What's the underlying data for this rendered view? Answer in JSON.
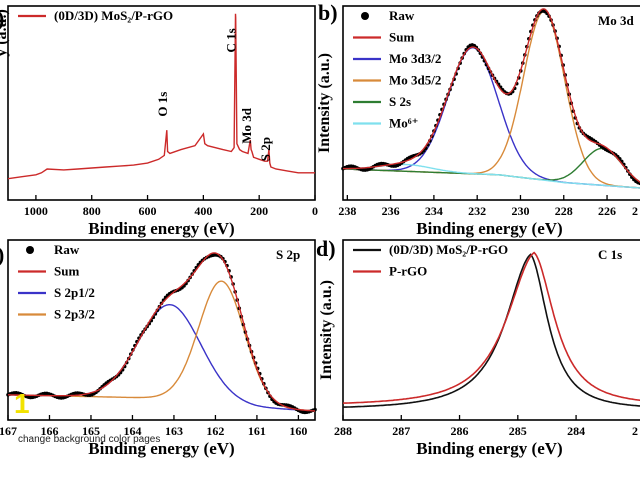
{
  "chart_data": [
    {
      "id": "a",
      "type": "line",
      "panel_letter": ")",
      "legend": [
        {
          "name": "(0D/3D) MoS₂/P-rGO",
          "color": "#cc2a2a",
          "marker": "line"
        }
      ],
      "xlabel": "Binding energy (eV)",
      "ylabel": "y (a.u.)",
      "xlim": [
        1100,
        0
      ],
      "ylim": [
        0,
        10
      ],
      "xticks": [
        1000,
        800,
        600,
        400,
        200,
        0
      ],
      "annotations": [
        {
          "text": "O 1s",
          "x": 531,
          "y": 4.3
        },
        {
          "text": "C 1s",
          "x": 284,
          "y": 7.6
        },
        {
          "text": "Mo 3d",
          "x": 229,
          "y": 2.9
        },
        {
          "text": "S 2p",
          "x": 162,
          "y": 2.0
        }
      ],
      "series": [
        {
          "name": "(0D/3D) MoS₂/P-rGO",
          "color": "#cc2a2a",
          "x": [
            1100,
            1050,
            1000,
            980,
            960,
            900,
            850,
            800,
            750,
            700,
            650,
            600,
            560,
            540,
            531,
            528,
            520,
            480,
            430,
            410,
            400,
            395,
            385,
            330,
            300,
            290,
            285,
            284,
            280,
            270,
            260,
            240,
            232,
            229,
            226,
            220,
            200,
            180,
            170,
            165,
            162,
            158,
            140,
            100,
            60,
            20,
            0
          ],
          "y": [
            1.1,
            1.2,
            1.3,
            1.4,
            1.6,
            1.55,
            1.6,
            1.65,
            1.7,
            1.75,
            1.8,
            1.9,
            2.1,
            2.3,
            3.6,
            2.5,
            2.4,
            2.6,
            2.8,
            3.2,
            3.4,
            2.9,
            2.8,
            2.6,
            2.5,
            2.7,
            9.6,
            9.4,
            2.9,
            2.6,
            2.5,
            2.4,
            3.1,
            2.6,
            2.5,
            2.2,
            2.1,
            2.0,
            2.0,
            2.6,
            1.9,
            1.7,
            1.6,
            1.5,
            1.4,
            1.4,
            1.4
          ]
        }
      ]
    },
    {
      "id": "b",
      "type": "line",
      "panel_letter": "b)",
      "corner_label": "Mo 3d",
      "ylabel": "Intensity (a.u.)",
      "xlabel": "Binding energy (eV)",
      "xlim": [
        238.2,
        224.2
      ],
      "ylim": [
        0,
        10
      ],
      "xticks": [
        238,
        236,
        234,
        232,
        230,
        228,
        226
      ],
      "last_tick_partial": "2",
      "legend": [
        {
          "name": "Raw",
          "color": "#000000",
          "marker": "dot"
        },
        {
          "name": "Sum",
          "color": "#cc2a2a",
          "marker": "line"
        },
        {
          "name": "Mo 3d3/2",
          "color": "#3a33c8",
          "marker": "line"
        },
        {
          "name": "Mo 3d5/2",
          "color": "#d88a3a",
          "marker": "line"
        },
        {
          "name": "S 2s",
          "color": "#2e7d32",
          "marker": "line"
        },
        {
          "name": "Mo⁶⁺",
          "color": "#7fe0ee",
          "marker": "line"
        }
      ],
      "baseline": [
        [
          238.2,
          1.6
        ],
        [
          231,
          1.3
        ],
        [
          228,
          0.9
        ],
        [
          224.2,
          0.6
        ]
      ],
      "peaks": [
        {
          "name": "Mo 3d3/2",
          "center": 232.2,
          "height": 6.5,
          "width": 1.15
        },
        {
          "name": "Mo 3d5/2",
          "center": 228.9,
          "height": 8.7,
          "width": 0.95
        },
        {
          "name": "S 2s",
          "center": 226.2,
          "height": 1.9,
          "width": 0.9
        },
        {
          "name": "Mo⁶⁺",
          "center": 235.3,
          "height": 0.35,
          "width": 1.2
        }
      ]
    },
    {
      "id": "c",
      "type": "line",
      "panel_letter": ")",
      "corner_label": "S 2p",
      "xlabel": "Binding energy (eV)",
      "xlim": [
        167,
        159.6
      ],
      "ylim": [
        0,
        10
      ],
      "xticks": [
        167,
        166,
        165,
        164,
        163,
        162,
        161,
        160
      ],
      "legend": [
        {
          "name": "Raw",
          "color": "#000000",
          "marker": "dot"
        },
        {
          "name": "Sum",
          "color": "#cc2a2a",
          "marker": "line"
        },
        {
          "name": "S 2p1/2",
          "color": "#3a33c8",
          "marker": "line"
        },
        {
          "name": "S 2p3/2",
          "color": "#d88a3a",
          "marker": "line"
        }
      ],
      "baseline": [
        [
          167,
          1.4
        ],
        [
          163,
          1.2
        ],
        [
          161,
          0.7
        ],
        [
          159.6,
          0.5
        ]
      ],
      "peaks": [
        {
          "name": "S 2p1/2",
          "center": 163.1,
          "height": 5.2,
          "width": 0.75
        },
        {
          "name": "S 2p3/2",
          "center": 161.85,
          "height": 6.8,
          "width": 0.55
        }
      ]
    },
    {
      "id": "d",
      "type": "line",
      "panel_letter": "d)",
      "corner_label": "C 1s",
      "ylabel": "Intensity (a.u.)",
      "xlabel": "Binding energy (eV)",
      "xlim": [
        288,
        282.8
      ],
      "ylim": [
        0,
        10
      ],
      "xticks": [
        288,
        287,
        286,
        285,
        284
      ],
      "last_tick_partial": "2",
      "legend": [
        {
          "name": "(0D/3D) MoS₂/P-rGO",
          "color": "#111111",
          "marker": "line"
        },
        {
          "name": "P-rGO",
          "color": "#cc2a2a",
          "marker": "line"
        }
      ],
      "series": [
        {
          "name": "(0D/3D) MoS₂/P-rGO",
          "color": "#111111",
          "center": 284.78,
          "height": 8.6,
          "wl": 0.55,
          "wr": 0.38,
          "tail": 0.6
        },
        {
          "name": "P-rGO",
          "color": "#cc2a2a",
          "center": 284.72,
          "height": 8.5,
          "wl": 0.6,
          "wr": 0.45,
          "tail": 0.8
        }
      ]
    }
  ],
  "watermark": {
    "number": "1",
    "caption": "change background color pages"
  }
}
